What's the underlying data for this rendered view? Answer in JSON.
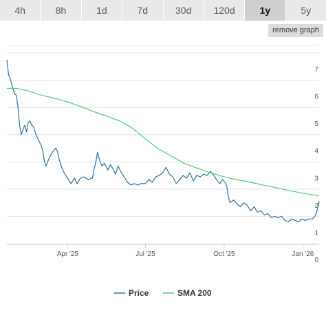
{
  "tabs": [
    {
      "label": "4h"
    },
    {
      "label": "8h"
    },
    {
      "label": "1d"
    },
    {
      "label": "7d"
    },
    {
      "label": "30d"
    },
    {
      "label": "120d"
    },
    {
      "label": "1y"
    },
    {
      "label": "5y"
    }
  ],
  "active_tab": "1y",
  "remove_graph_label": "remove graph",
  "colors": {
    "price": "#2e6fa3",
    "sma": "#4ecb78",
    "grid": "#e3e3e3",
    "axis": "#cccccc"
  },
  "chart_data": {
    "type": "line",
    "title": "",
    "xlabel": "",
    "ylabel": "",
    "xlim": [
      "2025-01-20",
      "2026-01-20"
    ],
    "ylim": [
      0,
      7
    ],
    "yticks": [
      0,
      1,
      2,
      3,
      4,
      5,
      6,
      7
    ],
    "xticks": [
      {
        "date": "2025-04-01",
        "label": "Apr '25"
      },
      {
        "date": "2025-07-01",
        "label": "Jul '25"
      },
      {
        "date": "2025-10-01",
        "label": "Oct '25"
      },
      {
        "date": "2026-01-01",
        "label": "Jan '26"
      }
    ],
    "grid": true,
    "legend_position": "bottom-center",
    "series": [
      {
        "name": "Price",
        "points": [
          [
            "2025-01-20",
            6.75
          ],
          [
            "2025-01-22",
            6.2
          ],
          [
            "2025-01-24",
            6.05
          ],
          [
            "2025-01-26",
            5.8
          ],
          [
            "2025-01-29",
            5.5
          ],
          [
            "2025-01-31",
            5.45
          ],
          [
            "2025-02-02",
            5.0
          ],
          [
            "2025-02-04",
            4.3
          ],
          [
            "2025-02-06",
            4.0
          ],
          [
            "2025-02-08",
            4.2
          ],
          [
            "2025-02-10",
            4.35
          ],
          [
            "2025-02-12",
            4.1
          ],
          [
            "2025-02-14",
            4.45
          ],
          [
            "2025-02-16",
            4.5
          ],
          [
            "2025-02-18",
            4.35
          ],
          [
            "2025-02-20",
            4.3
          ],
          [
            "2025-02-23",
            4.0
          ],
          [
            "2025-02-26",
            3.8
          ],
          [
            "2025-03-01",
            3.6
          ],
          [
            "2025-03-03",
            3.4
          ],
          [
            "2025-03-05",
            3.0
          ],
          [
            "2025-03-07",
            2.85
          ],
          [
            "2025-03-10",
            3.1
          ],
          [
            "2025-03-14",
            3.35
          ],
          [
            "2025-03-18",
            3.5
          ],
          [
            "2025-03-20",
            3.4
          ],
          [
            "2025-03-22",
            3.1
          ],
          [
            "2025-03-25",
            2.8
          ],
          [
            "2025-03-28",
            2.6
          ],
          [
            "2025-04-01",
            2.4
          ],
          [
            "2025-04-05",
            2.2
          ],
          [
            "2025-04-09",
            2.4
          ],
          [
            "2025-04-12",
            2.2
          ],
          [
            "2025-04-16",
            2.4
          ],
          [
            "2025-04-20",
            2.45
          ],
          [
            "2025-04-25",
            2.35
          ],
          [
            "2025-04-30",
            2.4
          ],
          [
            "2025-05-02",
            2.75
          ],
          [
            "2025-05-04",
            3.0
          ],
          [
            "2025-05-06",
            3.35
          ],
          [
            "2025-05-08",
            3.1
          ],
          [
            "2025-05-11",
            2.85
          ],
          [
            "2025-05-14",
            2.95
          ],
          [
            "2025-05-18",
            2.7
          ],
          [
            "2025-05-21",
            2.9
          ],
          [
            "2025-05-24",
            2.75
          ],
          [
            "2025-05-27",
            2.55
          ],
          [
            "2025-05-30",
            2.85
          ],
          [
            "2025-06-02",
            2.65
          ],
          [
            "2025-06-06",
            2.45
          ],
          [
            "2025-06-10",
            2.25
          ],
          [
            "2025-06-14",
            2.15
          ],
          [
            "2025-06-18",
            2.2
          ],
          [
            "2025-06-22",
            2.15
          ],
          [
            "2025-06-26",
            2.2
          ],
          [
            "2025-07-01",
            2.2
          ],
          [
            "2025-07-05",
            2.35
          ],
          [
            "2025-07-09",
            2.25
          ],
          [
            "2025-07-13",
            2.45
          ],
          [
            "2025-07-17",
            2.5
          ],
          [
            "2025-07-21",
            2.6
          ],
          [
            "2025-07-25",
            2.8
          ],
          [
            "2025-07-29",
            2.55
          ],
          [
            "2025-08-02",
            2.45
          ],
          [
            "2025-08-06",
            2.2
          ],
          [
            "2025-08-10",
            2.35
          ],
          [
            "2025-08-14",
            2.5
          ],
          [
            "2025-08-18",
            2.4
          ],
          [
            "2025-08-22",
            2.6
          ],
          [
            "2025-08-26",
            2.3
          ],
          [
            "2025-08-30",
            2.5
          ],
          [
            "2025-09-03",
            2.45
          ],
          [
            "2025-09-07",
            2.55
          ],
          [
            "2025-09-11",
            2.5
          ],
          [
            "2025-09-15",
            2.65
          ],
          [
            "2025-09-19",
            2.5
          ],
          [
            "2025-09-23",
            2.3
          ],
          [
            "2025-09-26",
            2.2
          ],
          [
            "2025-09-29",
            2.35
          ],
          [
            "2025-10-02",
            2.25
          ],
          [
            "2025-10-04",
            2.1
          ],
          [
            "2025-10-06",
            1.7
          ],
          [
            "2025-10-08",
            1.5
          ],
          [
            "2025-10-12",
            1.6
          ],
          [
            "2025-10-16",
            1.45
          ],
          [
            "2025-10-20",
            1.35
          ],
          [
            "2025-10-24",
            1.5
          ],
          [
            "2025-10-28",
            1.4
          ],
          [
            "2025-11-01",
            1.2
          ],
          [
            "2025-11-05",
            1.35
          ],
          [
            "2025-11-09",
            1.15
          ],
          [
            "2025-11-13",
            1.2
          ],
          [
            "2025-11-17",
            1.05
          ],
          [
            "2025-11-21",
            1.1
          ],
          [
            "2025-11-25",
            0.95
          ],
          [
            "2025-11-29",
            1.0
          ],
          [
            "2025-12-03",
            0.95
          ],
          [
            "2025-12-07",
            1.0
          ],
          [
            "2025-12-11",
            0.85
          ],
          [
            "2025-12-15",
            0.8
          ],
          [
            "2025-12-19",
            0.9
          ],
          [
            "2025-12-23",
            0.85
          ],
          [
            "2025-12-27",
            0.8
          ],
          [
            "2025-12-31",
            0.9
          ],
          [
            "2026-01-04",
            0.85
          ],
          [
            "2026-01-08",
            0.9
          ],
          [
            "2026-01-12",
            0.9
          ],
          [
            "2026-01-15",
            1.0
          ],
          [
            "2026-01-17",
            1.15
          ],
          [
            "2026-01-19",
            1.4
          ],
          [
            "2026-01-20",
            1.55
          ]
        ]
      },
      {
        "name": "SMA 200",
        "points": [
          [
            "2025-01-20",
            5.7
          ],
          [
            "2025-02-01",
            5.7
          ],
          [
            "2025-02-15",
            5.6
          ],
          [
            "2025-03-01",
            5.45
          ],
          [
            "2025-03-15",
            5.35
          ],
          [
            "2025-04-01",
            5.2
          ],
          [
            "2025-04-15",
            5.05
          ],
          [
            "2025-05-01",
            4.85
          ],
          [
            "2025-05-15",
            4.7
          ],
          [
            "2025-06-01",
            4.5
          ],
          [
            "2025-06-15",
            4.25
          ],
          [
            "2025-07-01",
            3.85
          ],
          [
            "2025-07-15",
            3.5
          ],
          [
            "2025-08-01",
            3.2
          ],
          [
            "2025-08-15",
            2.95
          ],
          [
            "2025-09-01",
            2.75
          ],
          [
            "2025-09-15",
            2.6
          ],
          [
            "2025-10-01",
            2.45
          ],
          [
            "2025-10-15",
            2.35
          ],
          [
            "2025-11-01",
            2.25
          ],
          [
            "2025-11-15",
            2.15
          ],
          [
            "2025-12-01",
            2.05
          ],
          [
            "2025-12-15",
            1.95
          ],
          [
            "2026-01-01",
            1.85
          ],
          [
            "2026-01-20",
            1.75
          ]
        ]
      }
    ]
  }
}
